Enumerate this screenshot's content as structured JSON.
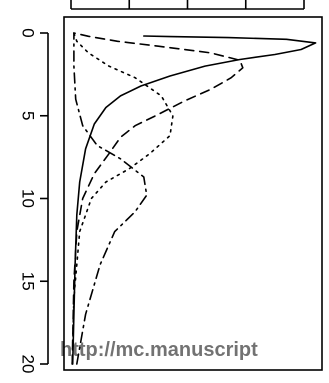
{
  "watermark_text": "http://mc.manuscript",
  "chart_data": {
    "type": "line",
    "orientation": "depth-profile",
    "title": "",
    "xlabel": "",
    "ylabel": "",
    "ylim": [
      0,
      20
    ],
    "y_reversed": true,
    "yticks": [
      0,
      5,
      10,
      15,
      20
    ],
    "ytick_labels": [
      "0",
      "5",
      "10",
      "15",
      "20"
    ],
    "xticks": [
      0,
      1,
      2,
      3,
      4
    ],
    "xtick_labels": [
      "",
      "",
      "",
      "",
      ""
    ],
    "xlim": [
      0,
      4.25
    ],
    "series": [
      {
        "line_style": "solid",
        "points": [
          [
            0.03,
            20
          ],
          [
            0.05,
            17
          ],
          [
            0.07,
            14
          ],
          [
            0.1,
            11
          ],
          [
            0.15,
            9
          ],
          [
            0.25,
            7
          ],
          [
            0.4,
            5.5
          ],
          [
            0.6,
            4.5
          ],
          [
            0.85,
            3.8
          ],
          [
            1.2,
            3.2
          ],
          [
            1.7,
            2.6
          ],
          [
            2.3,
            2.0
          ],
          [
            2.9,
            1.6
          ],
          [
            3.5,
            1.3
          ],
          [
            3.95,
            1.0
          ],
          [
            4.2,
            0.6
          ],
          [
            3.7,
            0.38
          ],
          [
            2.7,
            0.28
          ],
          [
            1.7,
            0.22
          ],
          [
            1.25,
            0.18
          ]
        ]
      },
      {
        "line_style": "dashed",
        "points": [
          [
            0.02,
            20
          ],
          [
            0.05,
            15
          ],
          [
            0.1,
            12
          ],
          [
            0.2,
            10
          ],
          [
            0.4,
            8.5
          ],
          [
            0.65,
            7.3
          ],
          [
            0.85,
            6.3
          ],
          [
            1.1,
            5.6
          ],
          [
            1.45,
            5.0
          ],
          [
            1.95,
            4.1
          ],
          [
            2.4,
            3.4
          ],
          [
            2.75,
            2.7
          ],
          [
            2.95,
            2.1
          ],
          [
            2.9,
            1.65
          ],
          [
            2.4,
            1.2
          ],
          [
            1.5,
            0.8
          ],
          [
            0.8,
            0.5
          ],
          [
            0.3,
            0.2
          ],
          [
            0.05,
            0.0
          ]
        ]
      },
      {
        "line_style": "dotted",
        "points": [
          [
            0.02,
            20
          ],
          [
            0.05,
            16
          ],
          [
            0.15,
            12
          ],
          [
            0.35,
            10
          ],
          [
            0.6,
            9
          ],
          [
            1.0,
            8.2
          ],
          [
            1.35,
            7.3
          ],
          [
            1.7,
            6.2
          ],
          [
            1.75,
            5.0
          ],
          [
            1.55,
            3.8
          ],
          [
            1.1,
            2.7
          ],
          [
            0.65,
            2.0
          ],
          [
            0.3,
            1.2
          ],
          [
            0.1,
            0.5
          ],
          [
            0.05,
            0.0
          ]
        ]
      },
      {
        "line_style": "dashdot",
        "points": [
          [
            0.1,
            20
          ],
          [
            0.25,
            17
          ],
          [
            0.5,
            14
          ],
          [
            0.75,
            12
          ],
          [
            1.1,
            10.8
          ],
          [
            1.3,
            9.8
          ],
          [
            1.25,
            8.7
          ],
          [
            0.85,
            7.6
          ],
          [
            0.45,
            6.8
          ],
          [
            0.2,
            5.6
          ],
          [
            0.08,
            4
          ],
          [
            0.05,
            2
          ],
          [
            0.05,
            0.0
          ]
        ]
      }
    ]
  }
}
